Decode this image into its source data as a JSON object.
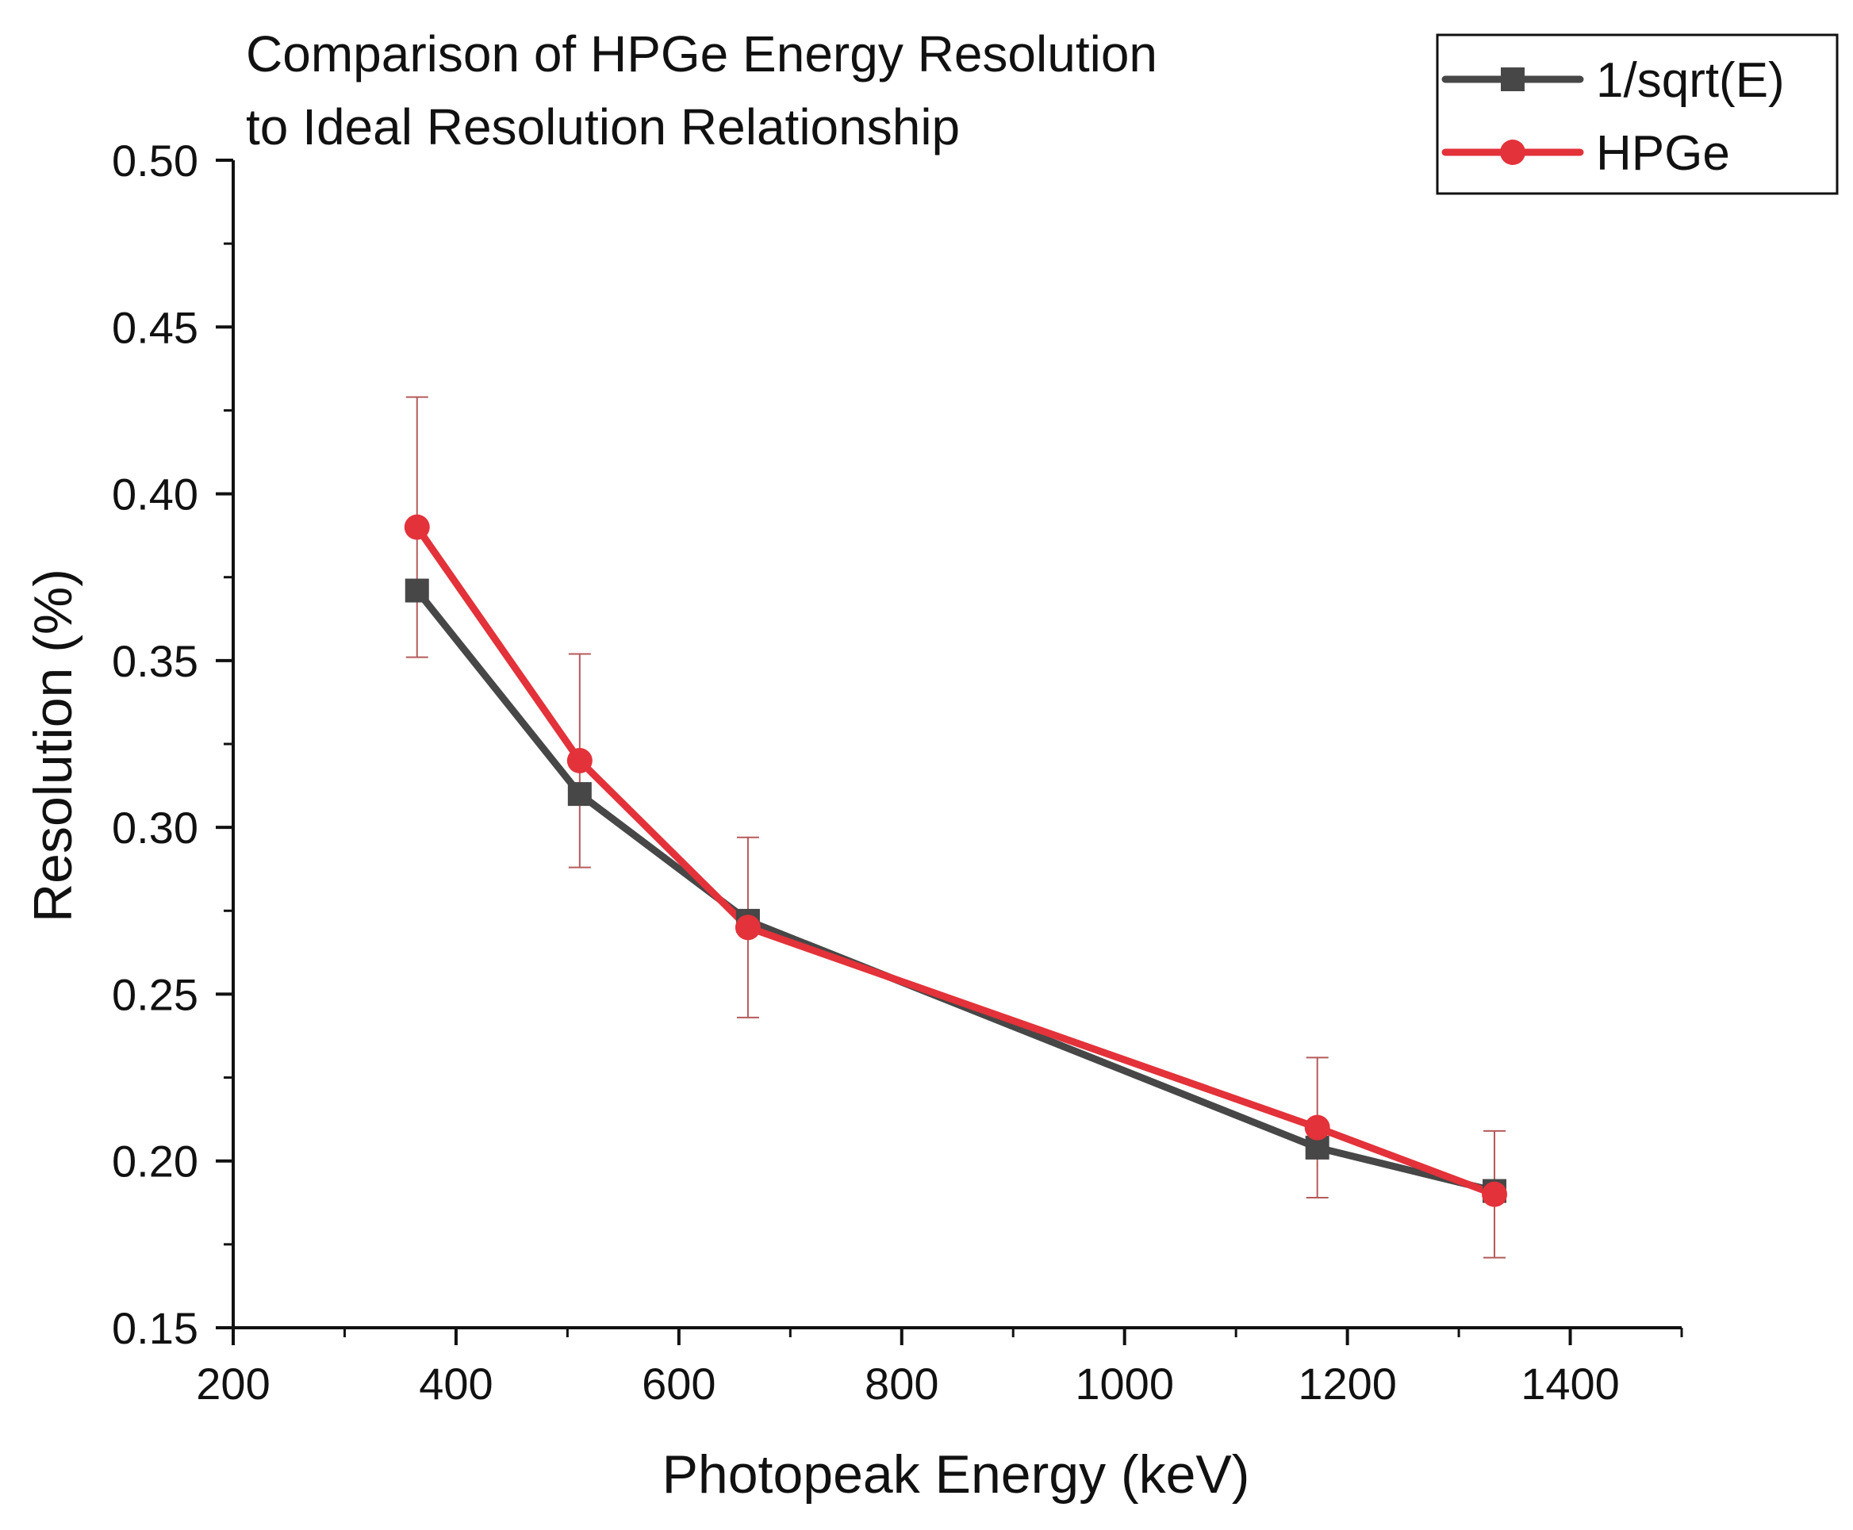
{
  "chart_data": {
    "type": "line",
    "title_lines": [
      "Comparison of HPGe Energy Resolution",
      "to Ideal Resolution Relationship"
    ],
    "xlabel": "Photopeak Energy (keV)",
    "ylabel": "Resolution (%)",
    "xlim": [
      200,
      1500
    ],
    "ylim": [
      0.15,
      0.5
    ],
    "x_ticks": [
      200,
      400,
      600,
      800,
      1000,
      1200,
      1400
    ],
    "x_tick_labels": [
      "200",
      "400",
      "600",
      "800",
      "1000",
      "1200",
      "1400"
    ],
    "y_ticks": [
      0.15,
      0.2,
      0.25,
      0.3,
      0.35,
      0.4,
      0.45,
      0.5
    ],
    "y_tick_labels": [
      "0.15",
      "0.20",
      "0.25",
      "0.30",
      "0.35",
      "0.40",
      "0.45",
      "0.50"
    ],
    "grid": false,
    "legend_position": "top-right",
    "series": [
      {
        "name": "1/sqrt(E)",
        "marker": "square",
        "color": "#474747",
        "x": [
          365,
          511,
          662,
          1173,
          1332
        ],
        "y": [
          0.371,
          0.31,
          0.272,
          0.204,
          0.191
        ]
      },
      {
        "name": "HPGe",
        "marker": "circle",
        "color": "#e3323a",
        "x": [
          365,
          511,
          662,
          1173,
          1332
        ],
        "y": [
          0.39,
          0.32,
          0.27,
          0.21,
          0.19
        ],
        "error_low": [
          0.351,
          0.288,
          0.243,
          0.189,
          0.171
        ],
        "error_high": [
          0.429,
          0.352,
          0.297,
          0.231,
          0.209
        ],
        "error_color": "#b55a5a"
      }
    ]
  }
}
